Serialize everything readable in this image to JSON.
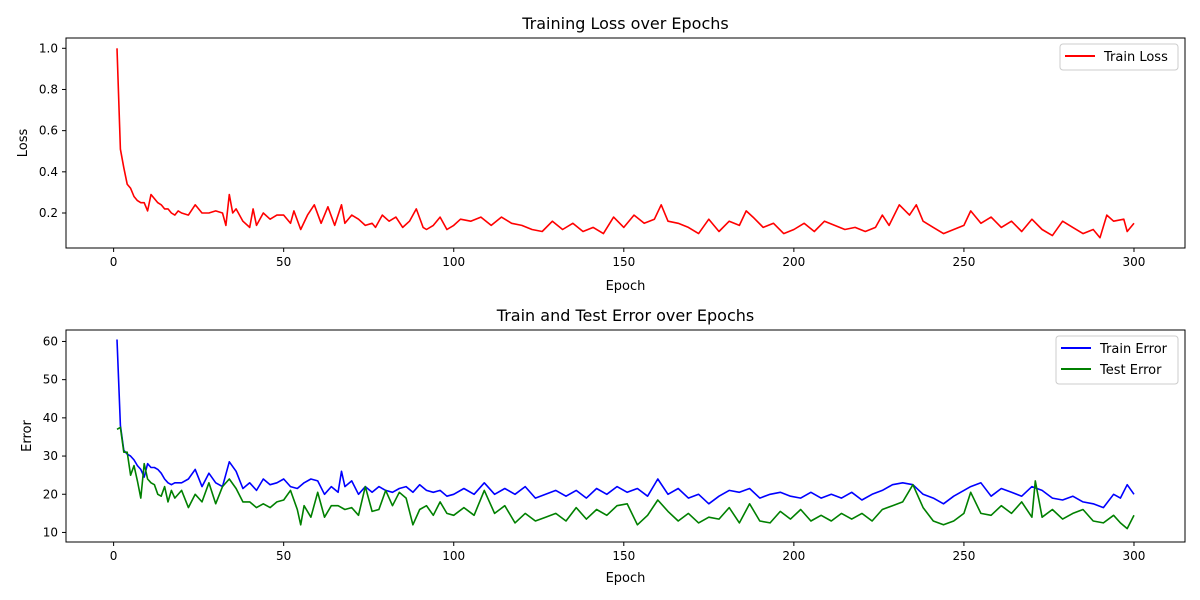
{
  "chart_data": [
    {
      "type": "line",
      "title": "Training Loss over Epochs",
      "xlabel": "Epoch",
      "ylabel": "Loss",
      "xlim": [
        -14,
        315
      ],
      "ylim": [
        0.03,
        1.05
      ],
      "xticks": [
        0,
        50,
        100,
        150,
        200,
        250,
        300
      ],
      "xtick_labels": [
        "0",
        "50",
        "100",
        "150",
        "200",
        "250",
        "300"
      ],
      "yticks": [
        0.2,
        0.4,
        0.6,
        0.8,
        1.0
      ],
      "ytick_labels": [
        "0.2",
        "0.4",
        "0.6",
        "0.8",
        "1.0"
      ],
      "legend_position": "upper-right",
      "grid": false,
      "series": [
        {
          "name": "Train Loss",
          "color": "#ff0000",
          "x": [
            1,
            2,
            3,
            4,
            5,
            6,
            7,
            8,
            9,
            10,
            11,
            12,
            13,
            14,
            15,
            16,
            17,
            18,
            19,
            20,
            22,
            24,
            26,
            28,
            30,
            32,
            33,
            34,
            35,
            36,
            38,
            40,
            41,
            42,
            44,
            46,
            48,
            50,
            52,
            53,
            55,
            57,
            59,
            61,
            63,
            65,
            67,
            68,
            70,
            72,
            74,
            76,
            77,
            79,
            81,
            83,
            85,
            87,
            89,
            91,
            92,
            94,
            96,
            98,
            100,
            102,
            105,
            108,
            111,
            114,
            117,
            120,
            123,
            126,
            129,
            132,
            135,
            138,
            141,
            144,
            147,
            150,
            153,
            156,
            159,
            161,
            163,
            166,
            169,
            172,
            175,
            178,
            181,
            184,
            186,
            188,
            191,
            194,
            197,
            200,
            203,
            206,
            209,
            212,
            215,
            218,
            221,
            224,
            226,
            228,
            231,
            234,
            236,
            238,
            241,
            244,
            247,
            250,
            252,
            255,
            258,
            261,
            264,
            267,
            270,
            273,
            276,
            279,
            282,
            285,
            288,
            290,
            292,
            294,
            297,
            298,
            300
          ],
          "y": [
            1.0,
            0.51,
            0.42,
            0.34,
            0.32,
            0.28,
            0.26,
            0.25,
            0.25,
            0.21,
            0.29,
            0.27,
            0.25,
            0.24,
            0.22,
            0.22,
            0.2,
            0.19,
            0.21,
            0.2,
            0.19,
            0.24,
            0.2,
            0.2,
            0.21,
            0.2,
            0.14,
            0.29,
            0.2,
            0.22,
            0.16,
            0.13,
            0.22,
            0.14,
            0.2,
            0.17,
            0.19,
            0.19,
            0.15,
            0.21,
            0.12,
            0.19,
            0.24,
            0.15,
            0.23,
            0.14,
            0.24,
            0.15,
            0.19,
            0.17,
            0.14,
            0.15,
            0.13,
            0.19,
            0.16,
            0.18,
            0.13,
            0.16,
            0.22,
            0.13,
            0.12,
            0.14,
            0.18,
            0.12,
            0.14,
            0.17,
            0.16,
            0.18,
            0.14,
            0.18,
            0.15,
            0.14,
            0.12,
            0.11,
            0.16,
            0.12,
            0.15,
            0.11,
            0.13,
            0.1,
            0.18,
            0.13,
            0.19,
            0.15,
            0.17,
            0.24,
            0.16,
            0.15,
            0.13,
            0.1,
            0.17,
            0.11,
            0.16,
            0.14,
            0.21,
            0.18,
            0.13,
            0.15,
            0.1,
            0.12,
            0.15,
            0.11,
            0.16,
            0.14,
            0.12,
            0.13,
            0.11,
            0.13,
            0.19,
            0.14,
            0.24,
            0.19,
            0.24,
            0.16,
            0.13,
            0.1,
            0.12,
            0.14,
            0.21,
            0.15,
            0.18,
            0.13,
            0.16,
            0.11,
            0.17,
            0.12,
            0.09,
            0.16,
            0.13,
            0.1,
            0.12,
            0.08,
            0.19,
            0.16,
            0.17,
            0.11,
            0.15
          ]
        }
      ]
    },
    {
      "type": "line",
      "title": "Train and Test Error over Epochs",
      "xlabel": "Epoch",
      "ylabel": "Error",
      "xlim": [
        -14,
        315
      ],
      "ylim": [
        7.5,
        63
      ],
      "xticks": [
        0,
        50,
        100,
        150,
        200,
        250,
        300
      ],
      "xtick_labels": [
        "0",
        "50",
        "100",
        "150",
        "200",
        "250",
        "300"
      ],
      "yticks": [
        10,
        20,
        30,
        40,
        50,
        60
      ],
      "ytick_labels": [
        "10",
        "20",
        "30",
        "40",
        "50",
        "60"
      ],
      "legend_position": "upper-right",
      "grid": false,
      "series": [
        {
          "name": "Train Error",
          "color": "#0000ff",
          "x": [
            1,
            2,
            3,
            4,
            5,
            6,
            7,
            8,
            9,
            10,
            11,
            12,
            13,
            14,
            15,
            16,
            17,
            18,
            20,
            22,
            24,
            26,
            28,
            30,
            32,
            34,
            36,
            38,
            40,
            42,
            44,
            46,
            48,
            50,
            52,
            54,
            56,
            58,
            60,
            62,
            64,
            66,
            67,
            68,
            70,
            72,
            74,
            76,
            78,
            80,
            82,
            84,
            86,
            88,
            90,
            92,
            94,
            96,
            98,
            100,
            103,
            106,
            109,
            112,
            115,
            118,
            121,
            124,
            127,
            130,
            133,
            136,
            139,
            142,
            145,
            148,
            151,
            154,
            157,
            160,
            163,
            166,
            169,
            172,
            175,
            178,
            181,
            184,
            187,
            190,
            193,
            196,
            199,
            202,
            205,
            208,
            211,
            214,
            217,
            220,
            223,
            226,
            229,
            232,
            235,
            238,
            241,
            244,
            247,
            250,
            252,
            255,
            258,
            261,
            264,
            267,
            270,
            273,
            276,
            279,
            282,
            285,
            288,
            291,
            294,
            296,
            298,
            300
          ],
          "y": [
            60.5,
            38.0,
            31.5,
            30.5,
            30.0,
            29.0,
            27.5,
            26.5,
            24.5,
            28.0,
            27.0,
            27.0,
            26.5,
            25.5,
            24.0,
            23.0,
            22.5,
            23.0,
            23.0,
            24.0,
            26.5,
            22.0,
            25.5,
            23.0,
            22.0,
            28.5,
            26.0,
            21.5,
            23.0,
            21.0,
            24.0,
            22.5,
            23.0,
            24.0,
            22.0,
            21.5,
            23.0,
            24.0,
            23.5,
            20.0,
            22.0,
            20.5,
            26.0,
            22.0,
            23.5,
            20.0,
            22.0,
            20.5,
            22.0,
            21.0,
            20.5,
            21.5,
            22.0,
            20.5,
            22.5,
            21.0,
            20.5,
            21.0,
            19.5,
            20.0,
            21.5,
            20.0,
            23.0,
            20.0,
            21.5,
            20.0,
            22.0,
            19.0,
            20.0,
            21.0,
            19.5,
            21.0,
            19.0,
            21.5,
            20.0,
            22.0,
            20.5,
            21.5,
            19.5,
            24.0,
            20.0,
            21.5,
            19.0,
            20.0,
            17.5,
            19.5,
            21.0,
            20.5,
            21.5,
            19.0,
            20.0,
            20.5,
            19.5,
            19.0,
            20.5,
            19.0,
            20.0,
            19.0,
            20.5,
            18.5,
            20.0,
            21.0,
            22.5,
            23.0,
            22.5,
            20.0,
            19.0,
            17.5,
            19.5,
            21.0,
            22.0,
            23.0,
            19.5,
            21.5,
            20.5,
            19.5,
            22.0,
            21.0,
            19.0,
            18.5,
            19.5,
            18.0,
            17.5,
            16.5,
            20.0,
            19.0,
            22.5,
            20.0
          ]
        },
        {
          "name": "Test Error",
          "color": "#008000",
          "x": [
            1,
            2,
            3,
            4,
            5,
            6,
            7,
            8,
            9,
            10,
            11,
            12,
            13,
            14,
            15,
            16,
            17,
            18,
            20,
            22,
            24,
            26,
            28,
            30,
            32,
            34,
            36,
            38,
            40,
            42,
            44,
            46,
            48,
            50,
            52,
            54,
            55,
            56,
            58,
            60,
            62,
            64,
            66,
            68,
            70,
            72,
            74,
            76,
            78,
            80,
            82,
            84,
            86,
            88,
            90,
            92,
            94,
            96,
            98,
            100,
            103,
            106,
            109,
            112,
            115,
            118,
            121,
            124,
            127,
            130,
            133,
            136,
            139,
            142,
            145,
            148,
            151,
            154,
            157,
            160,
            163,
            166,
            169,
            172,
            175,
            178,
            181,
            184,
            187,
            190,
            193,
            196,
            199,
            202,
            205,
            208,
            211,
            214,
            217,
            220,
            223,
            226,
            229,
            232,
            235,
            238,
            241,
            244,
            247,
            250,
            252,
            255,
            258,
            261,
            264,
            267,
            270,
            271,
            273,
            276,
            279,
            282,
            285,
            288,
            291,
            294,
            296,
            298,
            300
          ],
          "y": [
            37.0,
            37.5,
            31.0,
            31.0,
            25.0,
            27.5,
            23.5,
            19.0,
            28.0,
            24.0,
            23.0,
            22.5,
            20.0,
            19.5,
            22.0,
            18.0,
            21.0,
            19.0,
            21.0,
            16.5,
            20.0,
            18.0,
            23.0,
            17.5,
            22.0,
            24.0,
            21.5,
            18.0,
            18.0,
            16.5,
            17.5,
            16.5,
            18.0,
            18.5,
            21.0,
            16.0,
            12.0,
            17.0,
            14.0,
            20.5,
            14.0,
            17.0,
            17.0,
            16.0,
            16.5,
            14.5,
            22.0,
            15.5,
            16.0,
            21.0,
            17.0,
            20.5,
            19.0,
            12.0,
            16.0,
            17.0,
            14.5,
            18.0,
            15.0,
            14.5,
            16.5,
            14.5,
            21.0,
            15.0,
            17.0,
            12.5,
            15.0,
            13.0,
            14.0,
            15.0,
            13.0,
            16.5,
            13.5,
            16.0,
            14.5,
            17.0,
            17.5,
            12.0,
            14.5,
            18.5,
            15.5,
            13.0,
            15.0,
            12.5,
            14.0,
            13.5,
            16.5,
            12.5,
            17.5,
            13.0,
            12.5,
            15.5,
            13.5,
            16.0,
            13.0,
            14.5,
            13.0,
            15.0,
            13.5,
            15.0,
            13.0,
            16.0,
            17.0,
            18.0,
            22.5,
            16.5,
            13.0,
            12.0,
            13.0,
            15.0,
            20.5,
            15.0,
            14.5,
            17.0,
            15.0,
            18.0,
            14.0,
            23.5,
            14.0,
            16.0,
            13.5,
            15.0,
            16.0,
            13.0,
            12.5,
            14.5,
            12.5,
            11.0,
            14.5
          ]
        }
      ]
    }
  ]
}
